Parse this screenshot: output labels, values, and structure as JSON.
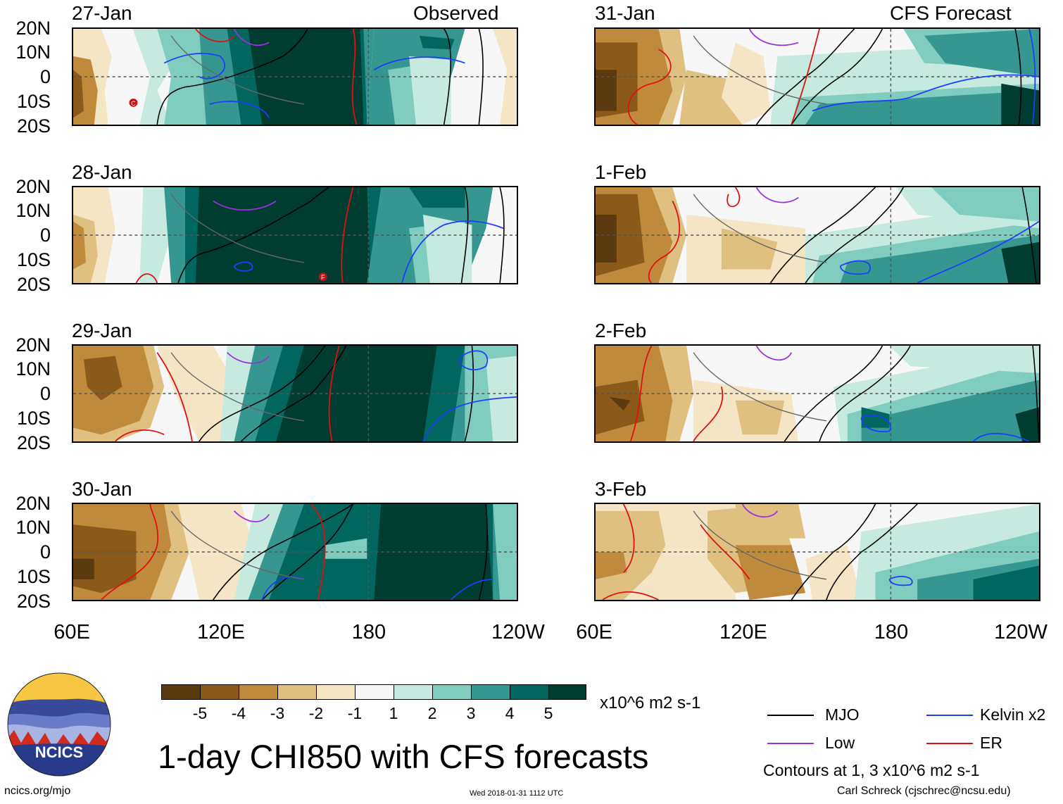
{
  "titles": {
    "observed": "Observed",
    "forecast": "CFS Forecast"
  },
  "obs_dates": [
    "27-Jan",
    "28-Jan",
    "29-Jan",
    "30-Jan"
  ],
  "fc_dates": [
    "31-Jan",
    "1-Feb",
    "2-Feb",
    "3-Feb"
  ],
  "lat_labels": [
    "20N",
    "10N",
    "0",
    "10S",
    "20S"
  ],
  "lon_labels": [
    "60E",
    "120E",
    "180",
    "120W"
  ],
  "storm_markers": {
    "first": "C",
    "second": "F"
  },
  "colorbar": {
    "labels": [
      "-5",
      "-4",
      "-3",
      "-2",
      "-1",
      "1",
      "2",
      "3",
      "4",
      "5"
    ],
    "colors": [
      "#5a3a0e",
      "#8b5a1a",
      "#bf8a3c",
      "#dfc080",
      "#f4e6c4",
      "#f7f7f7",
      "#c6eae0",
      "#80cdc0",
      "#35978f",
      "#01665e",
      "#003c30"
    ],
    "units": "x10^6 m2 s-1"
  },
  "main_title": "1-day CHI850 with CFS forecasts",
  "legend": {
    "mjo": "MJO",
    "kelvin": "Kelvin x2",
    "low": "Low",
    "er": "ER",
    "contours": "Contours at 1, 3 x10^6 m2 s-1",
    "colors": {
      "mjo": "#000000",
      "kelvin": "#1e3cff",
      "low": "#9b30e0",
      "er": "#e01010"
    }
  },
  "logo": {
    "text": "NCICS"
  },
  "footer": {
    "url": "ncics.org/mjo",
    "timestamp": "Wed 2018-01-31 1112 UTC",
    "author": "Carl Schreck (cjschrec@ncsu.edu)"
  }
}
